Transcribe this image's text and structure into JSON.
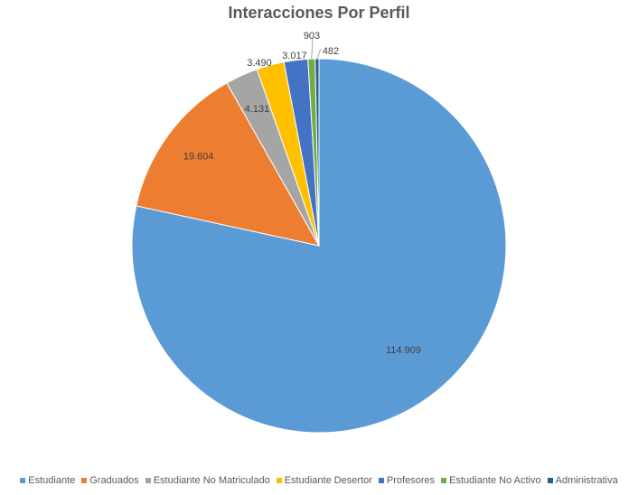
{
  "chart_data": {
    "type": "pie",
    "title": "Interacciones Por Perfil",
    "legend_position": "bottom",
    "series": [
      {
        "name": "Estudiante",
        "value": 114909,
        "label": "114.909",
        "color": "#5B9BD5"
      },
      {
        "name": "Graduados",
        "value": 19604,
        "label": "19.604",
        "color": "#ED7D31"
      },
      {
        "name": "Estudiante No Matriculado",
        "value": 4131,
        "label": "4.131",
        "color": "#A5A5A5"
      },
      {
        "name": "Estudiante Desertor",
        "value": 3490,
        "label": "3.490",
        "color": "#FFC000"
      },
      {
        "name": "Profesores",
        "value": 3017,
        "label": "3.017",
        "color": "#4472C4"
      },
      {
        "name": "Estudiante No Activo",
        "value": 903,
        "label": "903",
        "color": "#70AD47"
      },
      {
        "name": "Administrativa",
        "value": 482,
        "label": "482",
        "color": "#255E91"
      }
    ]
  }
}
